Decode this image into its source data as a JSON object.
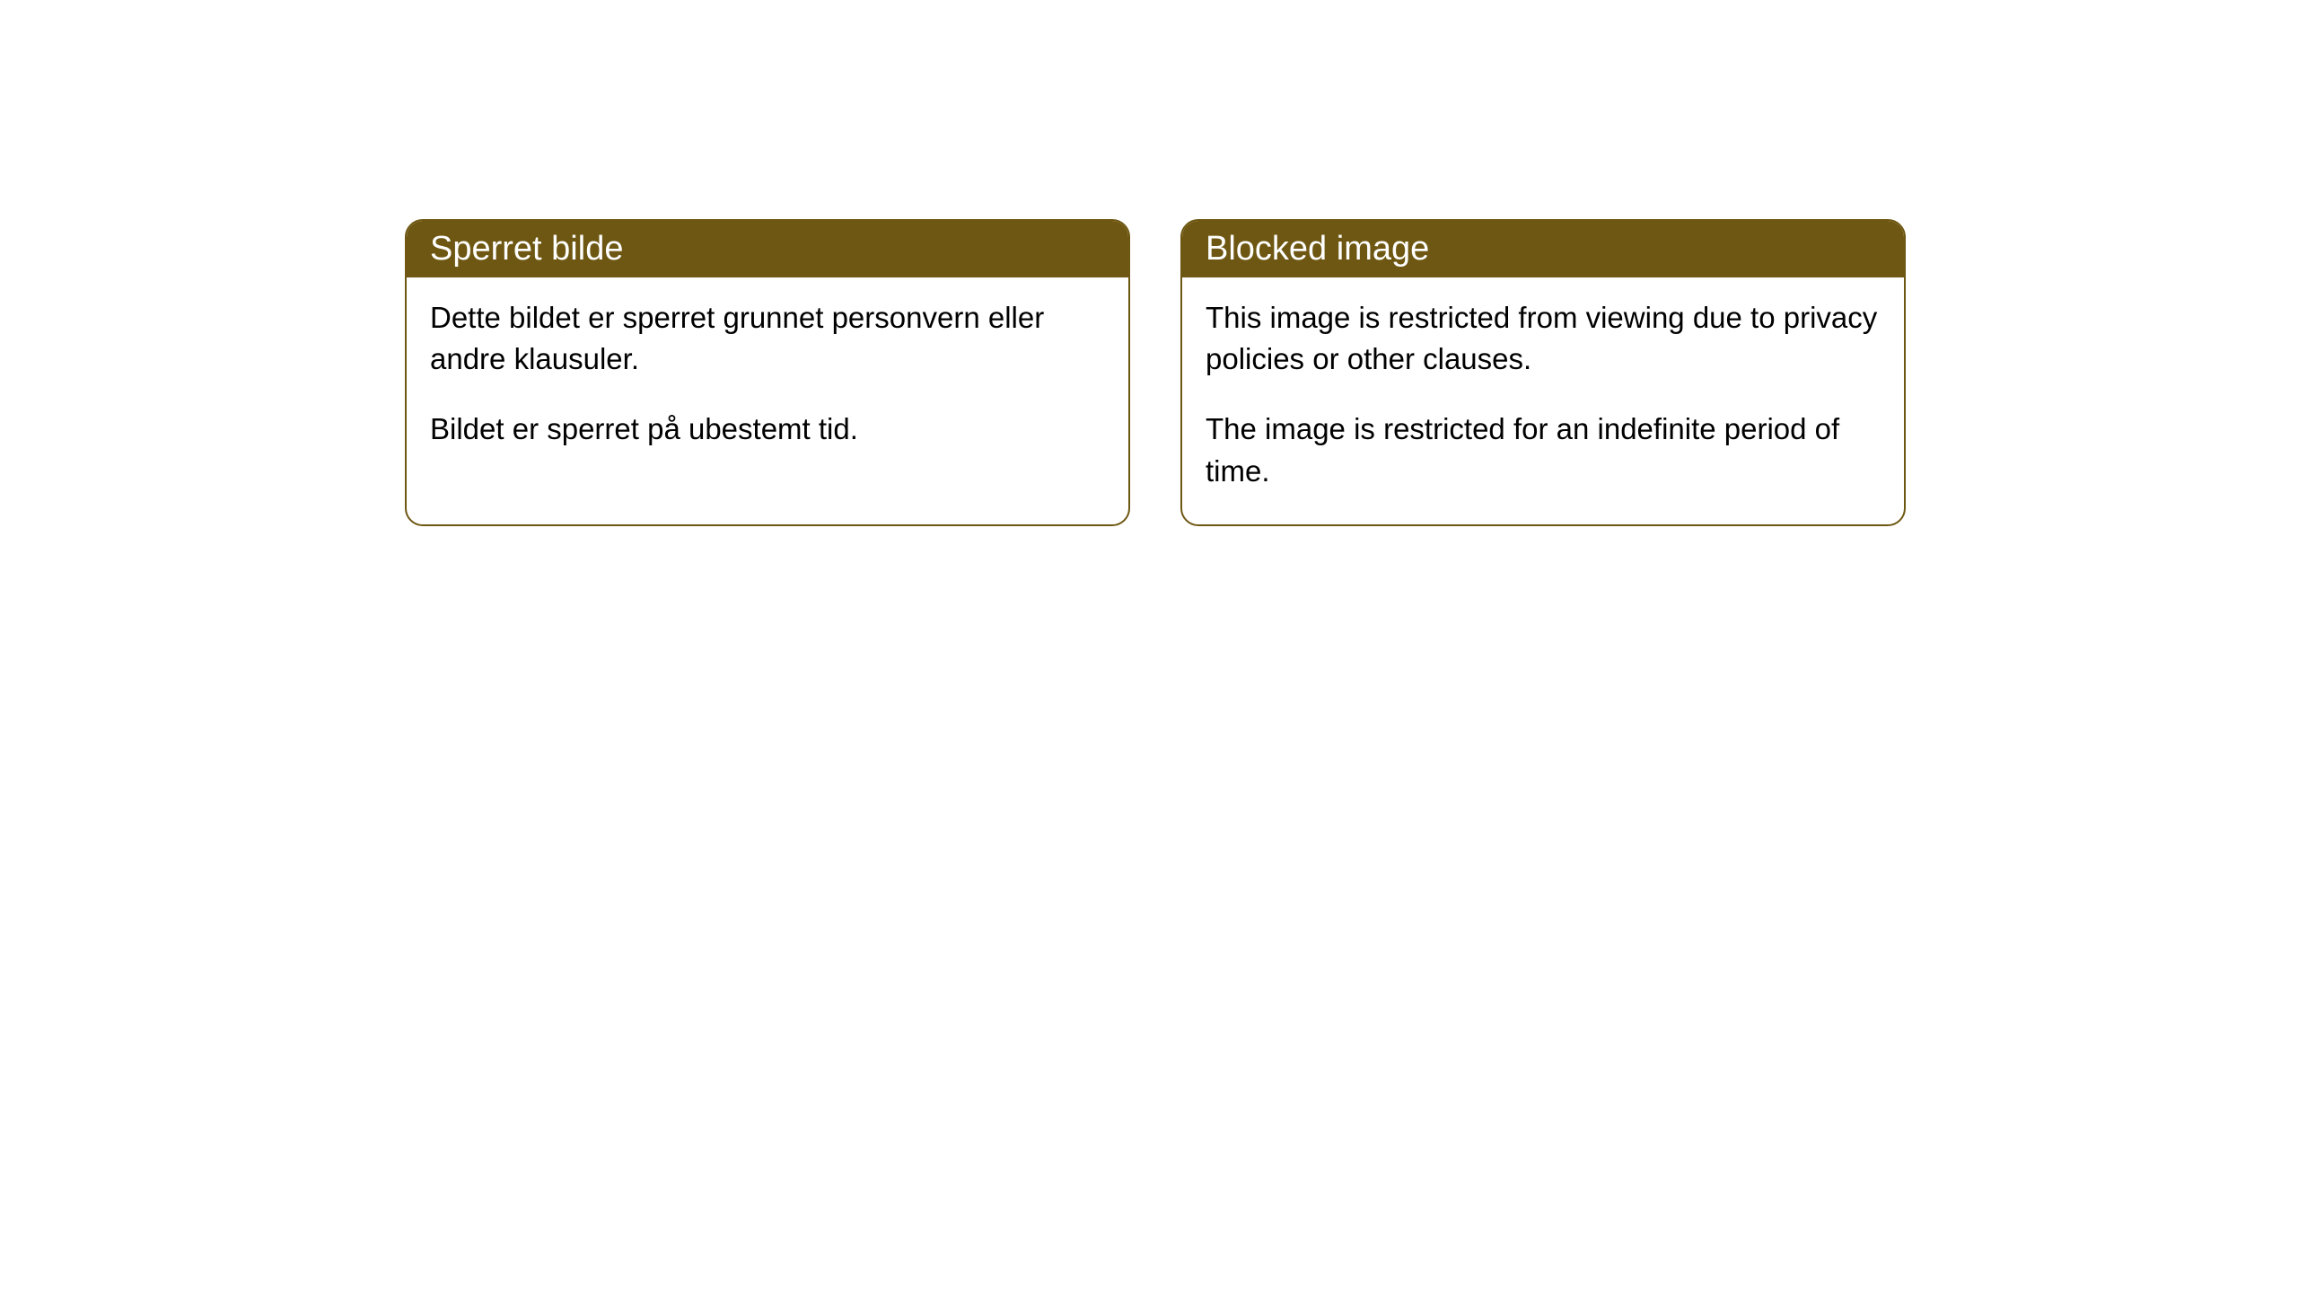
{
  "cards": [
    {
      "title": "Sperret bilde",
      "paragraph1": "Dette bildet er sperret grunnet personvern eller andre klausuler.",
      "paragraph2": "Bildet er sperret på ubestemt tid."
    },
    {
      "title": "Blocked image",
      "paragraph1": "This image is restricted from viewing due to privacy policies or other clauses.",
      "paragraph2": "The image is restricted for an indefinite period of time."
    }
  ],
  "styling": {
    "header_bg_color": "#6e5712",
    "header_text_color": "#ffffff",
    "body_bg_color": "#ffffff",
    "body_text_color": "#000000",
    "border_color": "#6e5712",
    "border_radius": 20,
    "header_font_size": 38,
    "body_font_size": 33
  }
}
